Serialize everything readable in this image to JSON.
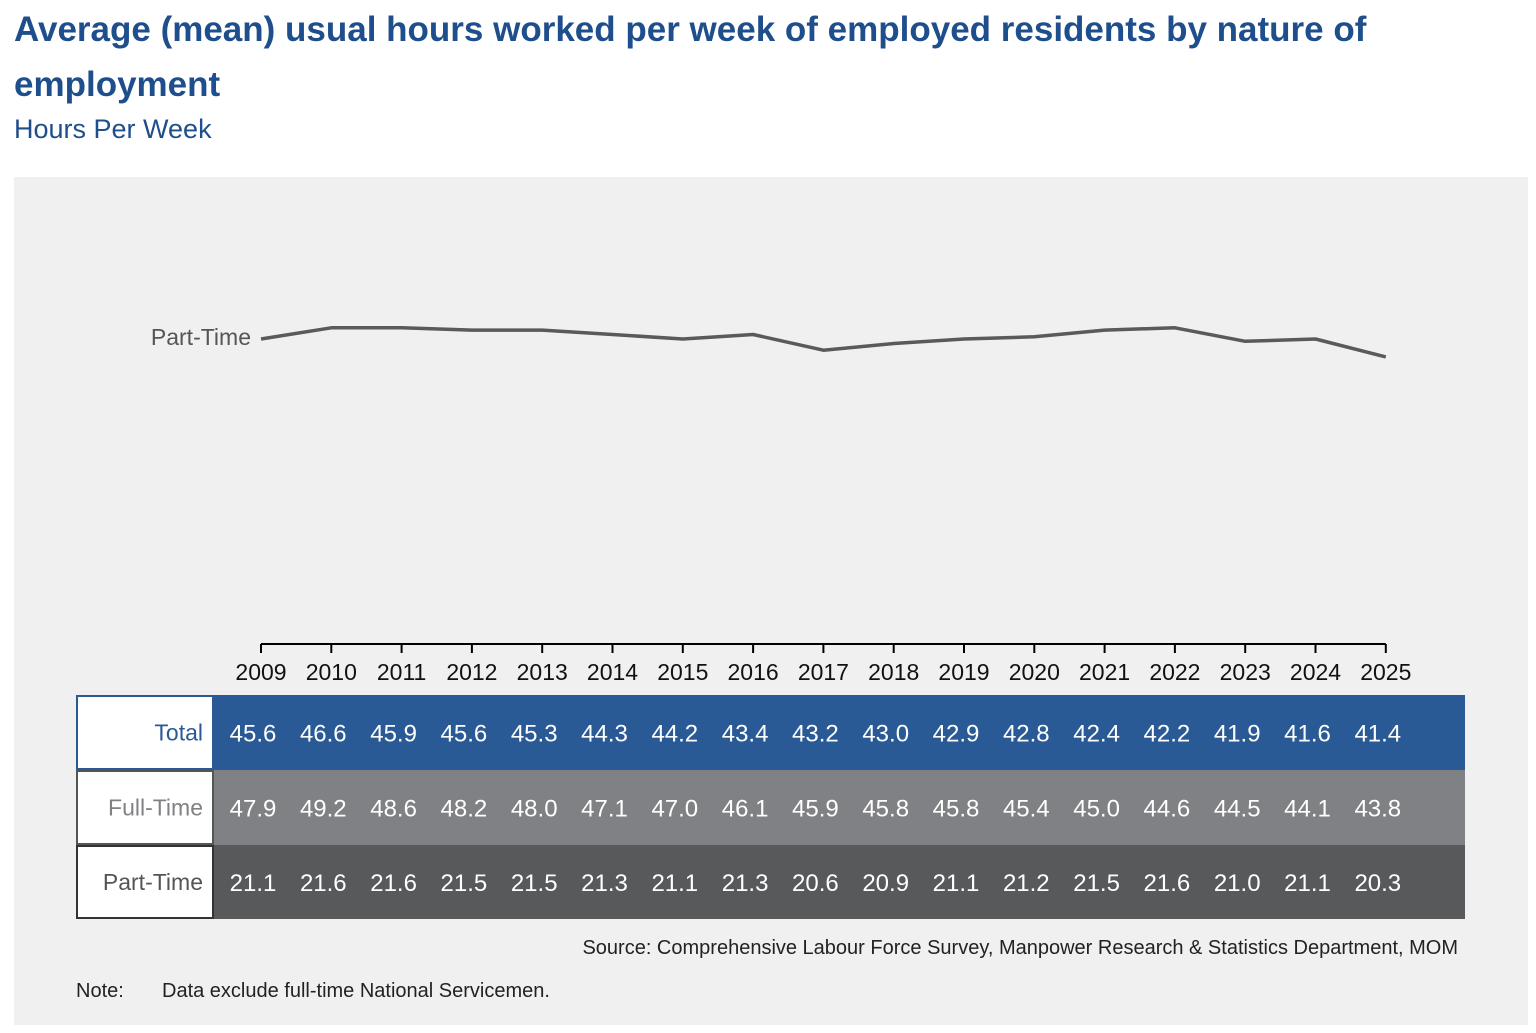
{
  "title": "Average (mean) usual hours worked per week of employed residents by nature of employment",
  "subtitle": "Hours Per Week",
  "chart_data": {
    "type": "line",
    "x": [
      "2009",
      "2010",
      "2011",
      "2012",
      "2013",
      "2014",
      "2015",
      "2016",
      "2017",
      "2018",
      "2019",
      "2020",
      "2021",
      "2022",
      "2023",
      "2024",
      "2025"
    ],
    "series": [
      {
        "name": "Total",
        "color": "#2a5a96",
        "values": [
          45.6,
          46.6,
          45.9,
          45.6,
          45.3,
          44.3,
          44.2,
          43.4,
          43.2,
          43.0,
          42.9,
          42.8,
          42.4,
          42.2,
          41.9,
          41.6,
          41.4
        ]
      },
      {
        "name": "Full-Time",
        "color": "#8a8a8a",
        "values": [
          47.9,
          49.2,
          48.6,
          48.2,
          48.0,
          47.1,
          47.0,
          46.1,
          45.9,
          45.8,
          45.8,
          45.4,
          45.0,
          44.6,
          44.5,
          44.1,
          43.8
        ]
      },
      {
        "name": "Part-Time",
        "color": "#5a5a5a",
        "values": [
          21.1,
          21.6,
          21.6,
          21.5,
          21.5,
          21.3,
          21.1,
          21.3,
          20.6,
          20.9,
          21.1,
          21.2,
          21.5,
          21.6,
          21.0,
          21.1,
          20.3
        ]
      }
    ],
    "table_rows": [
      {
        "name": "Total",
        "bg": "#2a5a96",
        "label_color": "#2a5a96",
        "border": "#2a5a96"
      },
      {
        "name": "Full-Time",
        "bg": "#808184",
        "label_color": "#808184",
        "border": "#555555"
      },
      {
        "name": "Part-Time",
        "bg": "#58595b",
        "label_color": "#555555",
        "border": "#333333"
      }
    ],
    "ylim": [
      18,
      54
    ],
    "grid": false,
    "legend": "direct-labels-left"
  },
  "source": "Source: Comprehensive Labour Force Survey, Manpower Research & Statistics Department, MOM",
  "note_label": "Note:",
  "note_text": "Data exclude full-time National Servicemen."
}
